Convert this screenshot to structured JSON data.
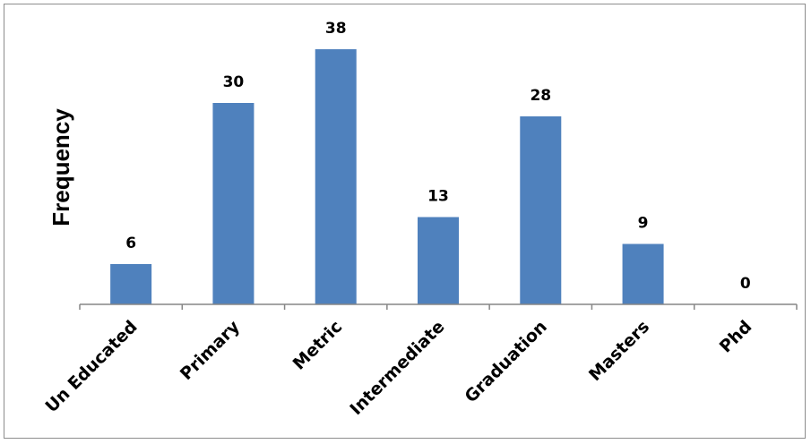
{
  "chart_data": {
    "type": "bar",
    "categories": [
      "Un Educated",
      "Primary",
      "Metric",
      "Intermediate",
      "Graduation",
      "Masters",
      "Phd"
    ],
    "values": [
      6,
      30,
      38,
      13,
      28,
      9,
      0
    ],
    "data_labels": [
      "6",
      "30",
      "38",
      "13",
      "28",
      "9",
      "0"
    ],
    "title": "",
    "xlabel": "",
    "ylabel": "Frequency",
    "ylim": [
      0,
      38
    ],
    "grid": false,
    "legend": "none",
    "bar_color": "#4f81bd",
    "axis_color": "#868686"
  }
}
